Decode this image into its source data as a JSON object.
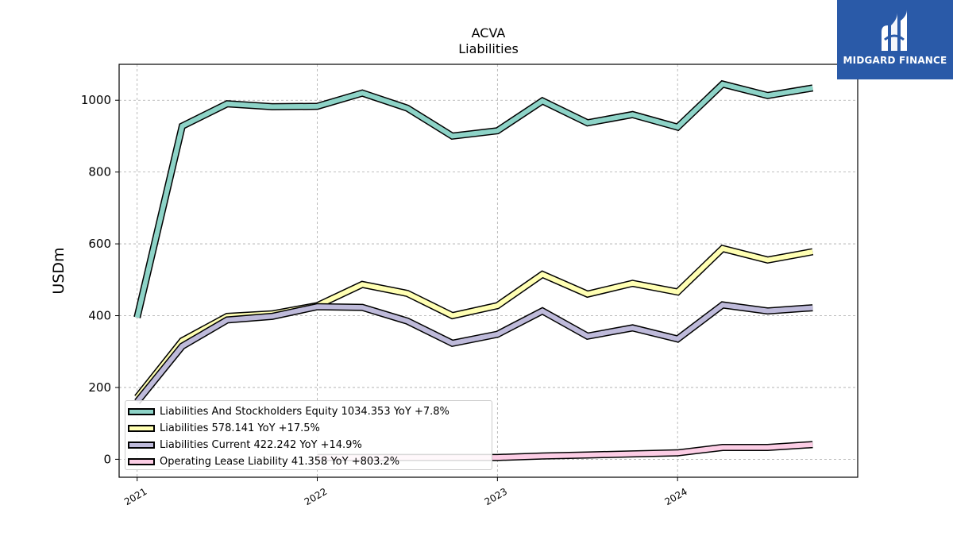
{
  "title": "ACVA",
  "subtitle": "Liabilities",
  "logo": {
    "text": "MIDGARD FINANCE",
    "background": "#2a5aa8"
  },
  "chart_data": {
    "type": "line",
    "title": "ACVA",
    "subtitle": "Liabilities",
    "xlabel": "",
    "ylabel": "USDm",
    "xlim": [
      2020.9,
      2025.0
    ],
    "ylim": [
      -50,
      1100
    ],
    "x_ticks": [
      {
        "label": "2021",
        "value": 2021
      },
      {
        "label": "2022",
        "value": 2022
      },
      {
        "label": "2023",
        "value": 2023
      },
      {
        "label": "2024",
        "value": 2024
      }
    ],
    "y_ticks": [
      0,
      200,
      400,
      600,
      800,
      1000
    ],
    "grid": true,
    "legend_position": "lower-left",
    "x": [
      2021.0,
      2021.25,
      2021.5,
      2021.75,
      2022.0,
      2022.25,
      2022.5,
      2022.75,
      2023.0,
      2023.25,
      2023.5,
      2023.75,
      2024.0,
      2024.25,
      2024.5,
      2024.75
    ],
    "series": [
      {
        "name": "Liabilities And Stockholders Equity",
        "legend_label": "Liabilities And Stockholders Equity  1034.353 YoY +7.8%",
        "color": "#8dd3c7",
        "values": [
          395,
          928,
          990,
          982,
          983,
          1020,
          978,
          900,
          915,
          998,
          937,
          960,
          925,
          1045,
          1013,
          1034
        ]
      },
      {
        "name": "Liabilities",
        "legend_label": "Liabilities  578.141 YoY +17.5%",
        "color": "#ffffb3",
        "values": [
          172,
          330,
          398,
          405,
          428,
          487,
          462,
          400,
          428,
          515,
          460,
          490,
          466,
          587,
          555,
          578
        ]
      },
      {
        "name": "Liabilities Current",
        "legend_label": "Liabilities Current  422.242 YoY +14.9%",
        "color": "#bebada",
        "values": [
          160,
          315,
          388,
          398,
          425,
          423,
          385,
          323,
          348,
          413,
          343,
          366,
          335,
          430,
          413,
          422
        ]
      },
      {
        "name": "Operating Lease Liability",
        "legend_label": "Operating Lease Liability  41.358 YoY +803.2%",
        "color": "#fccde5",
        "values": [
          null,
          null,
          null,
          null,
          5,
          5,
          5,
          5,
          5,
          9,
          12,
          15,
          18,
          33,
          33,
          41
        ]
      }
    ]
  }
}
